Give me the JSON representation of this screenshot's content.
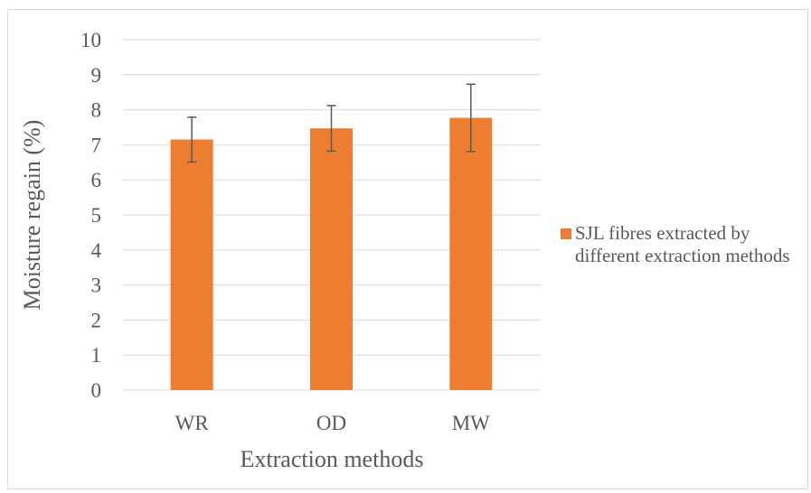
{
  "chart_data": {
    "type": "bar",
    "categories": [
      "WR",
      "OD",
      "MW"
    ],
    "series": [
      {
        "name": "SJL fibres extracted by different extraction methods",
        "values": [
          7.15,
          7.47,
          7.77
        ],
        "error": [
          0.64,
          0.65,
          0.96
        ],
        "color": "#ed7d31"
      }
    ],
    "xlabel": "Extraction methods",
    "ylabel": "Moisture regain  (%)",
    "ylim": [
      0,
      10
    ],
    "yticks": [
      0,
      1,
      2,
      3,
      4,
      5,
      6,
      7,
      8,
      9,
      10
    ],
    "grid": true,
    "legend": "right",
    "gridColor": "#d9d9d9",
    "textColor": "#595959",
    "errorColor": "#595959"
  }
}
